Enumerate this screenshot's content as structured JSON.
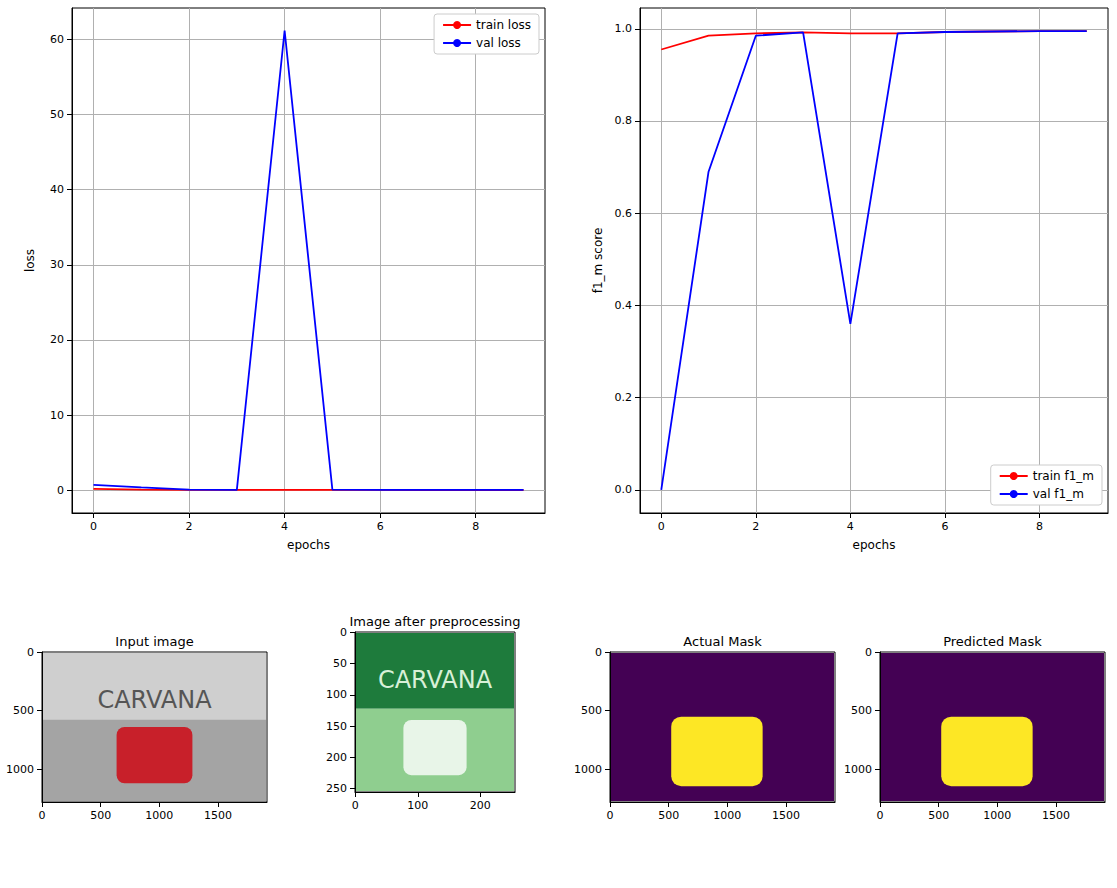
{
  "chart_data": [
    {
      "type": "line",
      "x": [
        0,
        1,
        2,
        3,
        4,
        5,
        6,
        7,
        8,
        9
      ],
      "xlabel": "epochs",
      "ylabel": "loss",
      "xlim": [
        -0.45,
        9.45
      ],
      "ylim": [
        -3.05,
        64.2
      ],
      "xticks": [
        0,
        2,
        4,
        6,
        8
      ],
      "yticks": [
        0,
        10,
        20,
        30,
        40,
        50,
        60
      ],
      "grid": true,
      "legend": "upper right",
      "series": [
        {
          "name": "train loss",
          "color": "#ff0000",
          "values": [
            0.15,
            0.05,
            0.03,
            0.02,
            0.02,
            0.02,
            0.02,
            0.01,
            0.01,
            0.01
          ]
        },
        {
          "name": "val loss",
          "color": "#0000ff",
          "values": [
            0.7,
            0.35,
            0.05,
            0.03,
            61.2,
            0.05,
            0.04,
            0.03,
            0.03,
            0.03
          ]
        }
      ]
    },
    {
      "type": "line",
      "x": [
        0,
        1,
        2,
        3,
        4,
        5,
        6,
        7,
        8,
        9
      ],
      "xlabel": "epochs",
      "ylabel": "f1_m score",
      "xlim": [
        -0.45,
        9.45
      ],
      "ylim": [
        -0.05,
        1.045
      ],
      "xticks": [
        0,
        2,
        4,
        6,
        8
      ],
      "yticks": [
        {
          "value": 0,
          "label": "0.0"
        },
        0.2,
        0.4,
        0.6,
        0.8,
        {
          "value": 1,
          "label": "1.0"
        }
      ],
      "grid": true,
      "legend": "lower right",
      "series": [
        {
          "name": "train f1_m",
          "color": "#ff0000",
          "values": [
            0.955,
            0.985,
            0.99,
            0.992,
            0.99,
            0.99,
            0.993,
            0.994,
            0.995,
            0.995
          ]
        },
        {
          "name": "val f1_m",
          "color": "#0000ff",
          "values": [
            0.0,
            0.69,
            0.985,
            0.992,
            0.36,
            0.99,
            0.993,
            0.994,
            0.995,
            0.995
          ]
        }
      ]
    },
    {
      "type": "image",
      "title": "Input image",
      "xlim": [
        -0.5,
        1917.5
      ],
      "ylim": [
        1279.5,
        -0.5
      ],
      "xticks": [
        0,
        500,
        1000,
        1500
      ],
      "yticks": [
        0,
        500,
        1000
      ],
      "annotations": [
        "CARVANA"
      ]
    },
    {
      "type": "image",
      "title": "Image after preprocessing",
      "xlim": [
        -0.5,
        255.5
      ],
      "ylim": [
        255.5,
        -0.5
      ],
      "xticks": [
        0,
        100,
        200
      ],
      "yticks": [
        0,
        50,
        100,
        150,
        200,
        250
      ],
      "annotations": [
        "CARVANA"
      ]
    },
    {
      "type": "image",
      "title": "Actual Mask",
      "xlim": [
        -0.5,
        1917.5
      ],
      "ylim": [
        1279.5,
        -0.5
      ],
      "xticks": [
        0,
        500,
        1000,
        1500
      ],
      "yticks": [
        0,
        500,
        1000
      ]
    },
    {
      "type": "image",
      "title": "Predicted Mask",
      "xlim": [
        -0.5,
        1917.5
      ],
      "ylim": [
        1279.5,
        -0.5
      ],
      "xticks": [
        0,
        500,
        1000,
        1500
      ],
      "yticks": [
        0,
        500,
        1000
      ]
    }
  ]
}
